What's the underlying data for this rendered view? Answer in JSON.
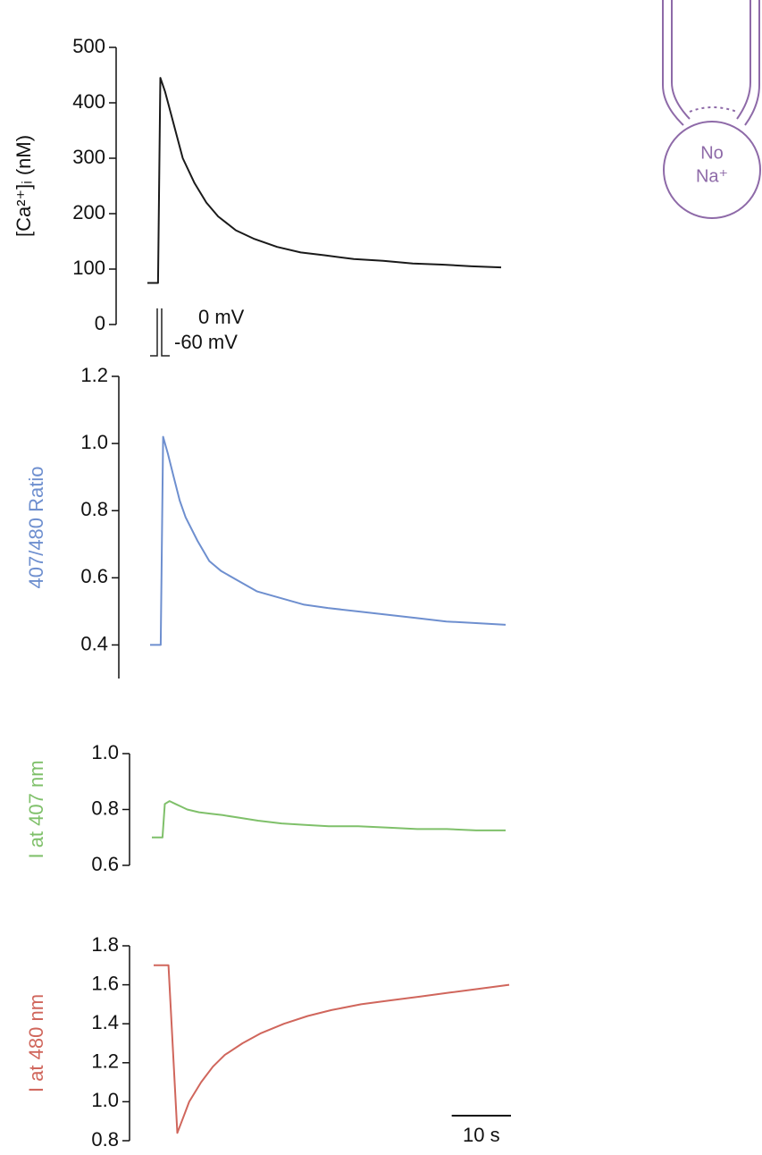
{
  "chart_data": [
    {
      "type": "line",
      "ylabel": "[Ca²⁺]ᵢ (nM)",
      "ylim": [
        0,
        500
      ],
      "yticks": [
        0,
        100,
        200,
        300,
        400,
        500
      ],
      "xlim": [
        0,
        60
      ],
      "x": [
        0,
        1,
        1.8,
        2.2,
        3,
        4,
        5,
        6,
        8,
        10,
        12,
        15,
        18,
        22,
        26,
        30,
        35,
        40,
        45,
        50,
        55,
        60
      ],
      "series": [
        {
          "color": "#1a1a1a",
          "values": [
            75,
            75,
            75,
            445,
            420,
            380,
            340,
            300,
            255,
            220,
            195,
            170,
            155,
            140,
            130,
            125,
            118,
            115,
            110,
            108,
            105,
            103
          ]
        }
      ],
      "annotations": [
        "0 mV",
        "-60 mV"
      ]
    },
    {
      "type": "line",
      "ylabel": "407/480 Ratio",
      "ylim": [
        0.3,
        1.2
      ],
      "yticks": [
        0.4,
        0.6,
        0.8,
        {
          "value": 1,
          "label": "1.0"
        },
        1.2
      ],
      "xlim": [
        0,
        60
      ],
      "x": [
        0,
        1,
        1.8,
        2.2,
        3,
        4,
        5,
        6,
        8,
        10,
        12,
        15,
        18,
        22,
        26,
        30,
        35,
        40,
        45,
        50,
        55,
        60
      ],
      "series": [
        {
          "color": "#6e8fcf",
          "values": [
            0.4,
            0.4,
            0.4,
            1.02,
            0.97,
            0.9,
            0.83,
            0.78,
            0.71,
            0.65,
            0.62,
            0.59,
            0.56,
            0.54,
            0.52,
            0.51,
            0.5,
            0.49,
            0.48,
            0.47,
            0.465,
            0.46
          ]
        }
      ]
    },
    {
      "type": "line",
      "ylabel": "I at 407 nm",
      "ylim": [
        0.6,
        1
      ],
      "yticks": [
        0.6,
        0.8,
        {
          "value": 1,
          "label": "1.0"
        }
      ],
      "xlim": [
        0,
        60
      ],
      "x": [
        0,
        1,
        1.8,
        2.2,
        3,
        4,
        5,
        6,
        8,
        10,
        12,
        15,
        18,
        22,
        26,
        30,
        35,
        40,
        45,
        50,
        55,
        60
      ],
      "series": [
        {
          "color": "#7fc06a",
          "values": [
            0.7,
            0.7,
            0.7,
            0.82,
            0.83,
            0.82,
            0.81,
            0.8,
            0.79,
            0.785,
            0.78,
            0.77,
            0.76,
            0.75,
            0.745,
            0.74,
            0.74,
            0.735,
            0.73,
            0.73,
            0.725,
            0.725
          ]
        }
      ]
    },
    {
      "type": "line",
      "ylabel": "I at 480 nm",
      "ylim": [
        0.8,
        1.8
      ],
      "yticks": [
        0.8,
        {
          "value": 1,
          "label": "1.0"
        },
        1.2,
        1.4,
        1.6,
        1.8
      ],
      "xlim": [
        0,
        60
      ],
      "x": [
        0,
        1,
        2.5,
        4,
        5,
        6,
        8,
        10,
        12,
        15,
        18,
        22,
        26,
        30,
        35,
        40,
        45,
        50,
        55,
        60
      ],
      "series": [
        {
          "color": "#d0665c",
          "values": [
            1.7,
            1.7,
            1.7,
            0.84,
            0.92,
            1.0,
            1.1,
            1.18,
            1.24,
            1.3,
            1.35,
            1.4,
            1.44,
            1.47,
            1.5,
            1.52,
            1.54,
            1.56,
            1.58,
            1.6
          ]
        }
      ],
      "scale_bar": {
        "value": 10,
        "label": "10 s"
      }
    }
  ],
  "diagram": {
    "lines": [
      "No",
      "Na⁺"
    ]
  }
}
